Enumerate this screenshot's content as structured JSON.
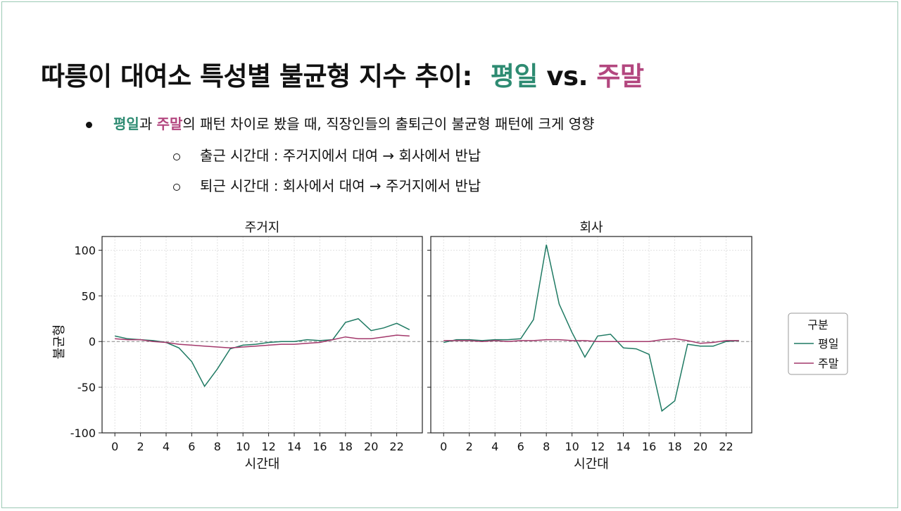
{
  "slide": {
    "title_main": "따릉이 대여소 특성별 불균형 지수 추이:",
    "title_weekday": "평일",
    "title_vs": " vs. ",
    "title_weekend": "주말",
    "bullet1_weekday": "평일",
    "bullet1_conj": "과 ",
    "bullet1_weekend": "주말",
    "bullet1_rest": "의 패턴 차이로 봤을 때, 직장인들의 출퇴근이 불균형 패턴에 크게 영향",
    "bullet2": "출근 시간대 : 주거지에서 대여 → 회사에서 반납",
    "bullet3": "퇴근 시간대 : 회사에서 대여 → 주거지에서 반납"
  },
  "colors": {
    "weekday": "#1f7a63",
    "weekend": "#a3386b",
    "accent_weekday": "#2e8b72",
    "accent_weekend": "#b3477f"
  },
  "chart_data": [
    {
      "type": "line",
      "title": "주거지",
      "xlabel": "시간대",
      "ylabel": "불균형",
      "xlim": [
        -1,
        24
      ],
      "ylim": [
        -100,
        115
      ],
      "xticks": [
        0,
        2,
        4,
        6,
        8,
        10,
        12,
        14,
        16,
        18,
        20,
        22
      ],
      "yticks": [
        100,
        50,
        0,
        -50,
        -100
      ],
      "x": [
        0,
        1,
        2,
        3,
        4,
        5,
        6,
        7,
        8,
        9,
        10,
        11,
        12,
        13,
        14,
        15,
        16,
        17,
        18,
        19,
        20,
        21,
        22,
        23
      ],
      "series": [
        {
          "name": "평일",
          "values": [
            6,
            3,
            2,
            1,
            -1,
            -7,
            -22,
            -49,
            -30,
            -8,
            -4,
            -3,
            -1,
            0,
            0,
            2,
            1,
            2,
            21,
            25,
            12,
            15,
            20,
            13
          ]
        },
        {
          "name": "주말",
          "values": [
            3,
            2,
            2,
            0,
            -1,
            -3,
            -4,
            -5,
            -6,
            -7,
            -6,
            -5,
            -4,
            -3,
            -3,
            -2,
            -1,
            2,
            5,
            3,
            3,
            5,
            7,
            6
          ]
        }
      ]
    },
    {
      "type": "line",
      "title": "회사",
      "xlabel": "시간대",
      "ylabel": "",
      "xlim": [
        -1,
        24
      ],
      "ylim": [
        -100,
        115
      ],
      "xticks": [
        0,
        2,
        4,
        6,
        8,
        10,
        12,
        14,
        16,
        18,
        20,
        22
      ],
      "yticks": [
        100,
        50,
        0,
        -50,
        -100
      ],
      "x": [
        0,
        1,
        2,
        3,
        4,
        5,
        6,
        7,
        8,
        9,
        10,
        11,
        12,
        13,
        14,
        15,
        16,
        17,
        18,
        19,
        20,
        21,
        22,
        23
      ],
      "series": [
        {
          "name": "평일",
          "values": [
            -1,
            2,
            2,
            1,
            2,
            2,
            3,
            24,
            106,
            41,
            10,
            -17,
            6,
            8,
            -7,
            -8,
            -14,
            -76,
            -65,
            -3,
            -5,
            -5,
            0,
            1
          ]
        },
        {
          "name": "주말",
          "values": [
            1,
            1,
            1,
            0,
            1,
            0,
            1,
            1,
            2,
            2,
            1,
            1,
            0,
            0,
            0,
            0,
            0,
            2,
            3,
            1,
            -2,
            -1,
            1,
            1
          ]
        }
      ]
    }
  ],
  "legend": {
    "title": "구분",
    "items": [
      "평일",
      "주말"
    ]
  }
}
